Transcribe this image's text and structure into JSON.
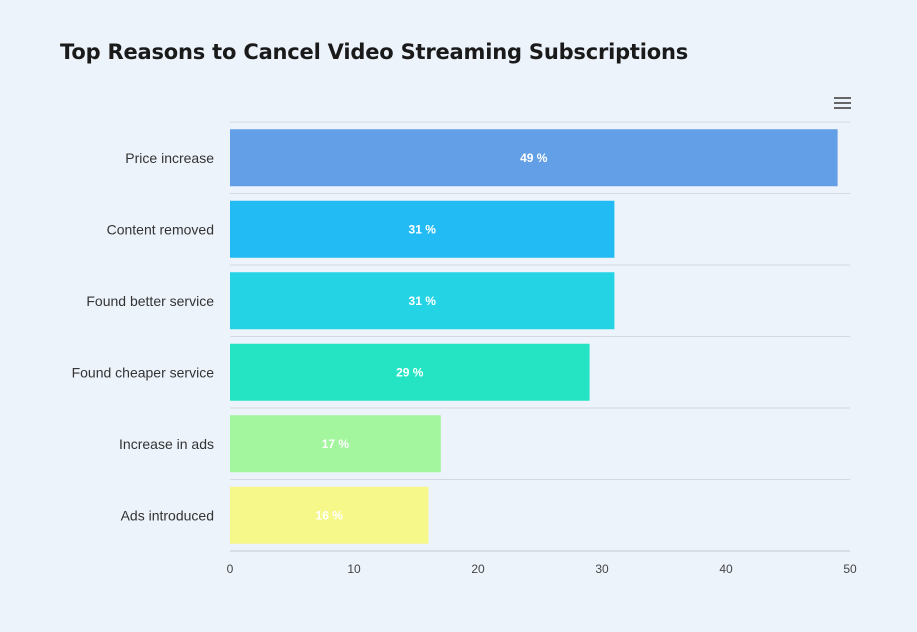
{
  "title": "Top Reasons to Cancel Video Streaming Subscriptions",
  "menu_icon": "hamburger-menu-icon",
  "chart_data": {
    "type": "bar",
    "orientation": "horizontal",
    "categories": [
      "Price increase",
      "Content removed",
      "Found better service",
      "Found cheaper service",
      "Increase in ads",
      "Ads introduced"
    ],
    "values": [
      49,
      31,
      31,
      29,
      17,
      16
    ],
    "data_labels": [
      "49 %",
      "31 %",
      "31 %",
      "29 %",
      "17 %",
      "16 %"
    ],
    "colors": [
      "#639fe6",
      "#22bbf3",
      "#24d3e4",
      "#24e4c4",
      "#a3f59e",
      "#f6f88a"
    ],
    "xlim": [
      0,
      50
    ],
    "xticks": [
      0,
      10,
      20,
      30,
      40,
      50
    ],
    "xlabel": "",
    "ylabel": "",
    "grid": "horizontal",
    "legend": "none"
  }
}
